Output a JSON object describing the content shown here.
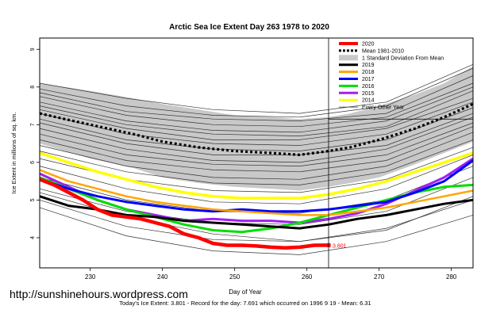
{
  "chart_data": {
    "type": "line",
    "title": "Arctic Sea Ice Extent Day 263 1978 to 2020",
    "xlabel": "Day of Year",
    "ylabel": "Ice Extent in millions of sq. km.",
    "xlim": [
      223,
      283
    ],
    "ylim": [
      3.2,
      9.3
    ],
    "x_ticks": [
      230,
      240,
      250,
      260,
      270,
      280
    ],
    "y_ticks": [
      4,
      5,
      6,
      7,
      8,
      9
    ],
    "grid": false,
    "current_day": 263,
    "reference_value": 7.15,
    "legend": {
      "position": "top-right",
      "entries": [
        {
          "label": "2020",
          "color": "#ff0000",
          "style": "solid"
        },
        {
          "label": "Mean 1981-2010",
          "color": "#000000",
          "style": "dotted"
        },
        {
          "label": "1 Standard Deviation From Mean",
          "color": "#c8c8c8",
          "style": "band"
        },
        {
          "label": "2019",
          "color": "#000000",
          "style": "solid"
        },
        {
          "label": "2018",
          "color": "#ffa500",
          "style": "solid"
        },
        {
          "label": "2017",
          "color": "#0000ff",
          "style": "solid"
        },
        {
          "label": "2016",
          "color": "#00dd00",
          "style": "solid"
        },
        {
          "label": "2015",
          "color": "#a020f0",
          "style": "solid"
        },
        {
          "label": "2014",
          "color": "#ffff00",
          "style": "solid"
        },
        {
          "label": "Every Other Year",
          "color": "#333333",
          "style": "thin"
        }
      ]
    },
    "mean": {
      "x": [
        223,
        230,
        236,
        240,
        245,
        250,
        255,
        259,
        263,
        266,
        270,
        275,
        279,
        283
      ],
      "values": [
        7.3,
        7.0,
        6.75,
        6.55,
        6.4,
        6.3,
        6.25,
        6.2,
        6.3,
        6.4,
        6.6,
        6.9,
        7.2,
        7.55
      ]
    },
    "std_band": {
      "x": [
        223,
        230,
        236,
        240,
        245,
        250,
        255,
        259,
        263,
        266,
        270,
        275,
        279,
        283
      ],
      "upper": [
        8.1,
        7.9,
        7.7,
        7.55,
        7.4,
        7.25,
        7.2,
        7.15,
        7.2,
        7.3,
        7.5,
        7.8,
        8.1,
        8.55
      ],
      "lower": [
        6.5,
        6.1,
        5.85,
        5.6,
        5.45,
        5.35,
        5.3,
        5.25,
        5.35,
        5.45,
        5.6,
        5.95,
        6.25,
        6.55
      ]
    },
    "series": [
      {
        "name": "2020",
        "color": "#ff0000",
        "width": 4.5,
        "x": [
          223,
          225,
          227,
          229,
          231,
          233,
          235,
          237,
          239,
          241,
          243,
          245,
          247,
          249,
          251,
          253,
          255,
          257,
          259,
          261,
          263
        ],
        "values": [
          5.55,
          5.4,
          5.2,
          5.0,
          4.75,
          4.6,
          4.55,
          4.5,
          4.4,
          4.3,
          4.1,
          4.0,
          3.85,
          3.8,
          3.8,
          3.78,
          3.75,
          3.73,
          3.75,
          3.8,
          3.801
        ],
        "end_label": "3.801"
      },
      {
        "name": "2019",
        "color": "#000000",
        "width": 3,
        "x": [
          223,
          227,
          231,
          235,
          239,
          243,
          247,
          251,
          255,
          259,
          263,
          267,
          271,
          275,
          279,
          283
        ],
        "values": [
          5.1,
          4.85,
          4.75,
          4.6,
          4.55,
          4.45,
          4.4,
          4.35,
          4.3,
          4.25,
          4.35,
          4.5,
          4.6,
          4.75,
          4.9,
          5.0
        ]
      },
      {
        "name": "2018",
        "color": "#ffa500",
        "width": 2.5,
        "x": [
          223,
          227,
          231,
          235,
          239,
          243,
          247,
          251,
          255,
          259,
          263,
          267,
          271,
          275,
          279,
          283
        ],
        "values": [
          5.8,
          5.5,
          5.3,
          5.1,
          4.95,
          4.85,
          4.75,
          4.7,
          4.65,
          4.6,
          4.6,
          4.7,
          4.8,
          4.95,
          5.1,
          5.25
        ]
      },
      {
        "name": "2017",
        "color": "#0000ff",
        "width": 3,
        "x": [
          223,
          227,
          231,
          235,
          239,
          243,
          247,
          251,
          255,
          259,
          263,
          267,
          271,
          275,
          279,
          283
        ],
        "values": [
          5.55,
          5.3,
          5.1,
          4.95,
          4.85,
          4.75,
          4.7,
          4.75,
          4.7,
          4.7,
          4.75,
          4.85,
          4.95,
          5.2,
          5.5,
          6.05
        ]
      },
      {
        "name": "2016",
        "color": "#00dd00",
        "width": 3,
        "x": [
          223,
          227,
          231,
          235,
          239,
          243,
          247,
          251,
          255,
          259,
          263,
          267,
          271,
          275,
          279,
          283
        ],
        "values": [
          5.6,
          5.3,
          5.0,
          4.75,
          4.55,
          4.35,
          4.2,
          4.15,
          4.25,
          4.4,
          4.6,
          4.8,
          5.0,
          5.2,
          5.35,
          5.4
        ]
      },
      {
        "name": "2015",
        "color": "#a020f0",
        "width": 3,
        "x": [
          223,
          227,
          231,
          235,
          239,
          243,
          247,
          251,
          255,
          259,
          263,
          267,
          271,
          275,
          279,
          283
        ],
        "values": [
          5.7,
          5.35,
          5.0,
          4.75,
          4.6,
          4.45,
          4.5,
          4.45,
          4.45,
          4.4,
          4.5,
          4.65,
          4.9,
          5.25,
          5.6,
          6.1
        ]
      },
      {
        "name": "2014",
        "color": "#ffff00",
        "width": 3.5,
        "x": [
          223,
          227,
          231,
          235,
          239,
          243,
          247,
          251,
          255,
          259,
          263,
          267,
          271,
          275,
          279,
          283
        ],
        "values": [
          6.25,
          6.0,
          5.75,
          5.55,
          5.35,
          5.2,
          5.1,
          5.05,
          5.05,
          5.05,
          5.15,
          5.3,
          5.5,
          5.75,
          6.0,
          6.25
        ]
      }
    ],
    "other_years": {
      "x": [
        223,
        235,
        247,
        259,
        271,
        283
      ],
      "series": [
        [
          8.1,
          7.7,
          7.4,
          7.3,
          7.6,
          8.6
        ],
        [
          7.95,
          7.5,
          7.25,
          7.2,
          7.5,
          8.5
        ],
        [
          7.85,
          7.35,
          7.15,
          7.1,
          7.3,
          8.3
        ],
        [
          7.75,
          7.25,
          7.0,
          6.95,
          7.2,
          8.1
        ],
        [
          7.6,
          7.1,
          6.85,
          6.8,
          7.1,
          8.0
        ],
        [
          7.5,
          7.0,
          6.75,
          6.7,
          6.95,
          7.9
        ],
        [
          7.4,
          6.9,
          6.6,
          6.6,
          6.9,
          7.7
        ],
        [
          7.3,
          6.75,
          6.5,
          6.45,
          6.75,
          7.6
        ],
        [
          7.15,
          6.6,
          6.35,
          6.3,
          6.6,
          7.45
        ],
        [
          7.05,
          6.5,
          6.2,
          6.2,
          6.45,
          7.3
        ],
        [
          6.9,
          6.35,
          6.05,
          6.0,
          6.35,
          7.2
        ],
        [
          6.75,
          6.2,
          5.95,
          5.9,
          6.2,
          7.05
        ],
        [
          6.6,
          6.05,
          5.8,
          5.75,
          6.05,
          6.95
        ],
        [
          6.45,
          5.9,
          5.6,
          5.55,
          5.9,
          6.8
        ],
        [
          6.3,
          5.75,
          5.45,
          5.4,
          5.75,
          6.6
        ],
        [
          6.1,
          5.55,
          5.25,
          5.2,
          5.55,
          6.4
        ],
        [
          5.9,
          5.3,
          4.95,
          4.9,
          5.3,
          6.2
        ],
        [
          5.6,
          5.0,
          4.7,
          4.65,
          5.0,
          5.9
        ],
        [
          5.3,
          4.7,
          4.4,
          4.35,
          4.7,
          5.6
        ],
        [
          5.0,
          4.3,
          3.95,
          3.9,
          4.2,
          5.1
        ],
        [
          4.8,
          4.05,
          3.65,
          3.55,
          3.9,
          4.6
        ],
        [
          5.2,
          4.55,
          4.1,
          3.9,
          4.25,
          5.0
        ]
      ]
    }
  },
  "watermark": "http://sunshinehours.wordpress.com",
  "footer": "Today's Ice Extent: 3.801  - Record for the day: 7.691 which occurred on 1996 9 19  - Mean: 6.31"
}
